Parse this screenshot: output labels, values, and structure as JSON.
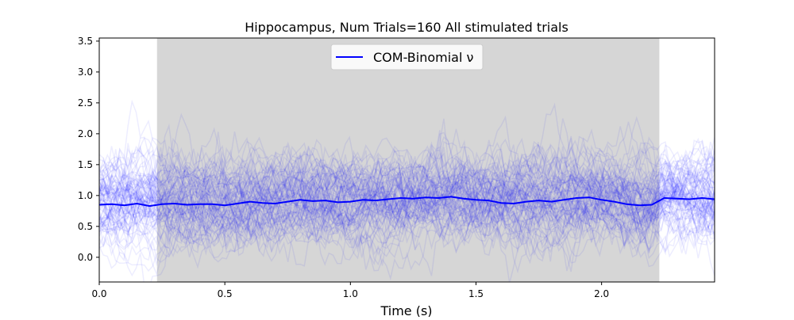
{
  "chart_data": {
    "type": "line",
    "title": "Hippocampus, Num Trials=160 All stimulated trials",
    "xlabel": "Time (s)",
    "ylabel": "",
    "xlim": [
      0.0,
      2.45
    ],
    "ylim": [
      -0.4,
      3.55
    ],
    "x_ticks": [
      0.0,
      0.5,
      1.0,
      1.5,
      2.0
    ],
    "x_tick_labels": [
      "0.0",
      "0.5",
      "1.0",
      "1.5",
      "2.0"
    ],
    "y_ticks": [
      0.0,
      0.5,
      1.0,
      1.5,
      2.0,
      2.5,
      3.0,
      3.5
    ],
    "y_tick_labels": [
      "0.0",
      "0.5",
      "1.0",
      "1.5",
      "2.0",
      "2.5",
      "3.0",
      "3.5"
    ],
    "grid": false,
    "legend_position": "top-center",
    "shaded_region": {
      "x_start": 0.23,
      "x_end": 2.23,
      "color": "#d6d6d6"
    },
    "trial_count": 160,
    "trial_color": "#0000ff",
    "series": [
      {
        "name": "COM-Binomial ν",
        "color": "#0000ff",
        "x": [
          0.0,
          0.05,
          0.1,
          0.15,
          0.2,
          0.25,
          0.3,
          0.35,
          0.4,
          0.45,
          0.5,
          0.55,
          0.6,
          0.65,
          0.7,
          0.75,
          0.8,
          0.85,
          0.9,
          0.95,
          1.0,
          1.05,
          1.1,
          1.15,
          1.2,
          1.25,
          1.3,
          1.35,
          1.4,
          1.45,
          1.5,
          1.55,
          1.6,
          1.65,
          1.7,
          1.75,
          1.8,
          1.85,
          1.9,
          1.95,
          2.0,
          2.05,
          2.1,
          2.15,
          2.2,
          2.25,
          2.3,
          2.35,
          2.4,
          2.45
        ],
        "values": [
          0.85,
          0.86,
          0.84,
          0.87,
          0.83,
          0.86,
          0.87,
          0.85,
          0.86,
          0.86,
          0.84,
          0.87,
          0.9,
          0.88,
          0.87,
          0.9,
          0.93,
          0.91,
          0.92,
          0.89,
          0.9,
          0.93,
          0.92,
          0.94,
          0.96,
          0.95,
          0.97,
          0.96,
          0.98,
          0.95,
          0.93,
          0.92,
          0.88,
          0.87,
          0.9,
          0.92,
          0.9,
          0.93,
          0.96,
          0.97,
          0.93,
          0.9,
          0.86,
          0.84,
          0.85,
          0.96,
          0.95,
          0.94,
          0.96,
          0.94
        ]
      }
    ]
  }
}
